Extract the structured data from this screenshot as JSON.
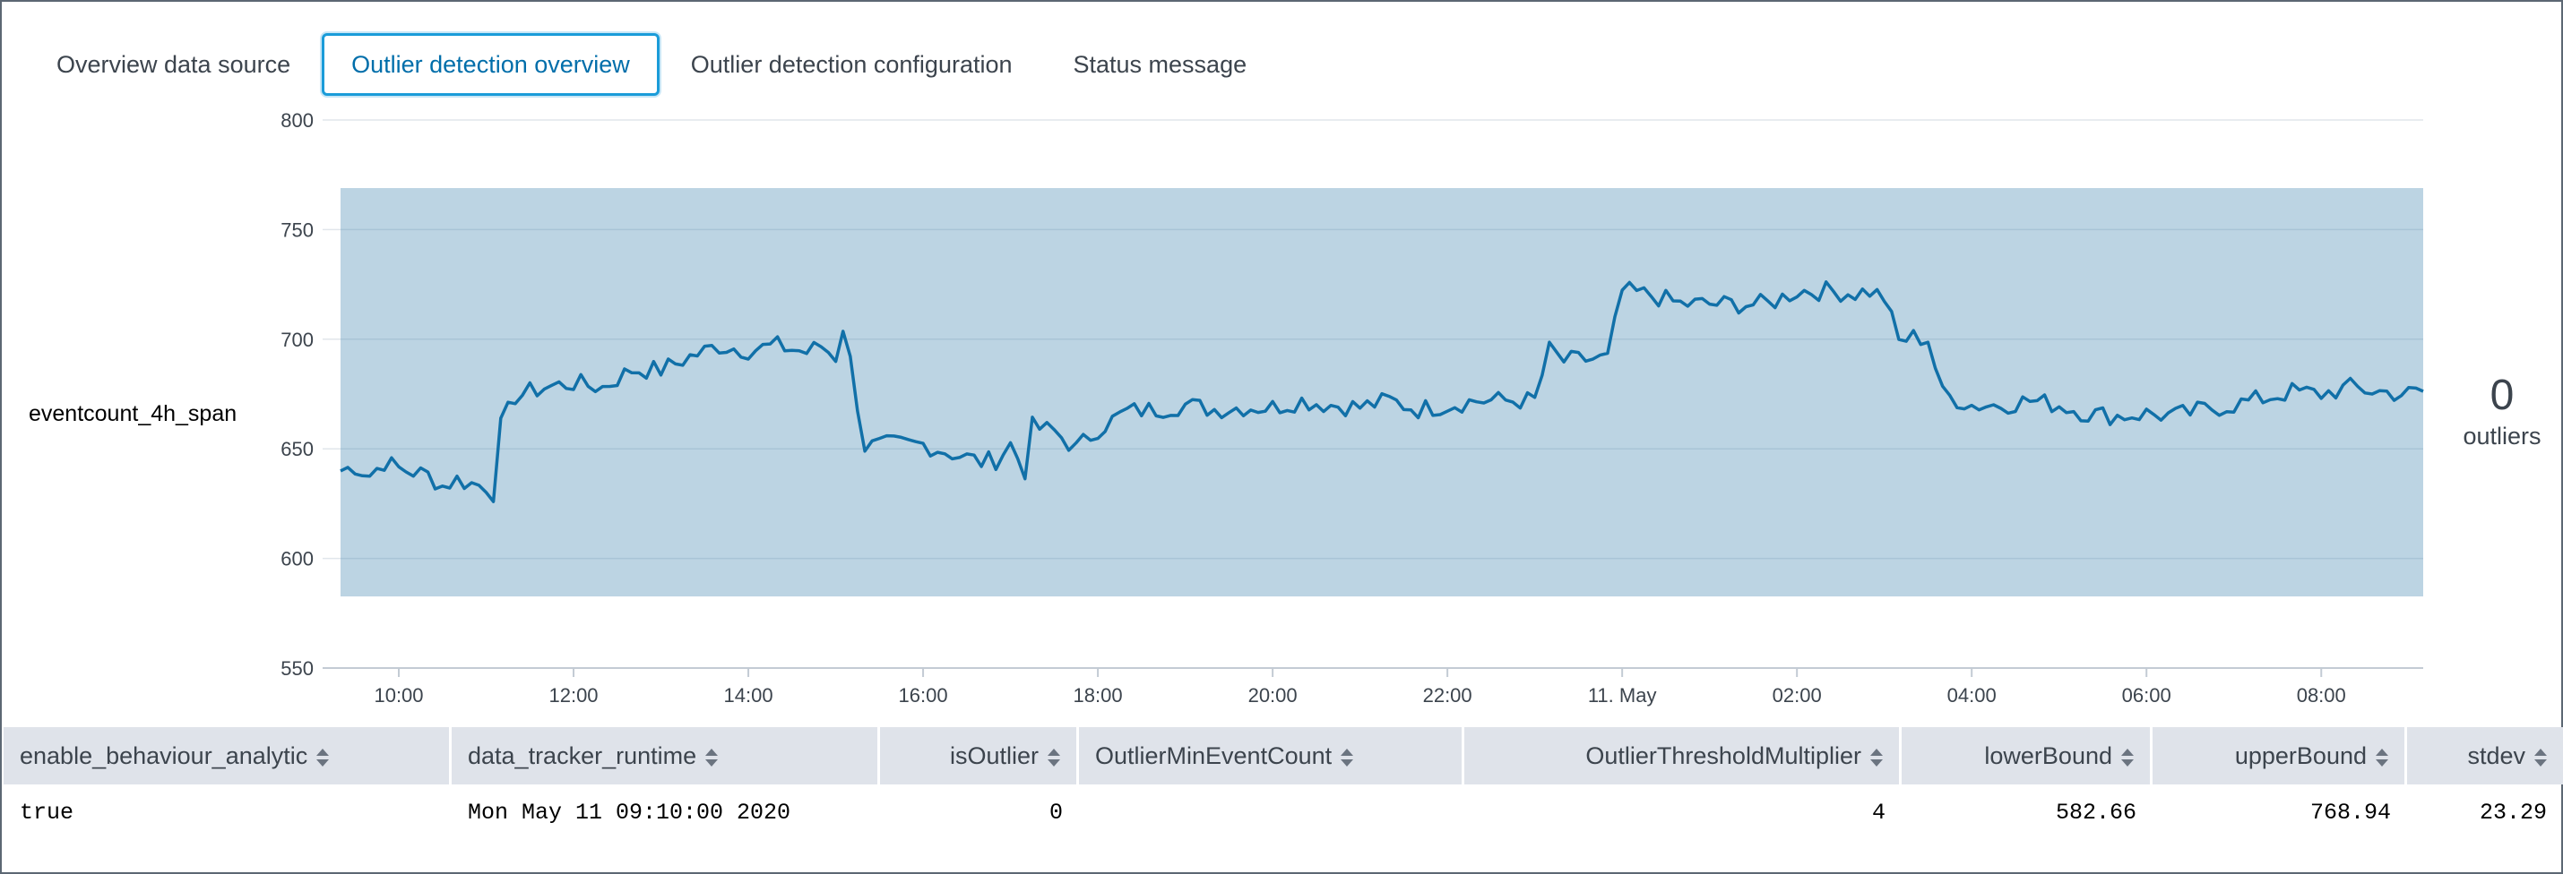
{
  "tabs": [
    {
      "label": "Overview data source",
      "active": false
    },
    {
      "label": "Outlier detection overview",
      "active": true
    },
    {
      "label": "Outlier detection configuration",
      "active": false
    },
    {
      "label": "Status message",
      "active": false
    }
  ],
  "chart": {
    "y_title": "eventcount_4h_span",
    "colors": {
      "line": "#1170a8",
      "band": "#bcd4e3",
      "grid": "#e1e6eb",
      "axis": "#c3cbd4"
    }
  },
  "summary": {
    "count": "0",
    "label": "outliers"
  },
  "chart_data": {
    "type": "line",
    "x_range": [
      "2020-05-10 09:20",
      "2020-05-11 09:10"
    ],
    "x_ticks": [
      "10:00",
      "12:00",
      "14:00",
      "16:00",
      "18:00",
      "20:00",
      "22:00",
      "11. May",
      "02:00",
      "04:00",
      "06:00",
      "08:00"
    ],
    "y_ticks": [
      "550",
      "600",
      "650",
      "700",
      "750",
      "800"
    ],
    "ylim": [
      550,
      800
    ],
    "ylabel": "eventcount_4h_span",
    "grid": true,
    "band": {
      "lower": 582.66,
      "upper": 768.94
    },
    "anchors": [
      [
        "09:20",
        640
      ],
      [
        "09:30",
        642
      ],
      [
        "09:40",
        638
      ],
      [
        "09:50",
        644
      ],
      [
        "10:00",
        641
      ],
      [
        "10:20",
        638
      ],
      [
        "10:30",
        633
      ],
      [
        "10:40",
        636
      ],
      [
        "10:50",
        634
      ],
      [
        "11:00",
        633
      ],
      [
        "11:05",
        630
      ],
      [
        "11:10",
        660
      ],
      [
        "11:20",
        674
      ],
      [
        "11:40",
        678
      ],
      [
        "12:00",
        680
      ],
      [
        "12:20",
        678
      ],
      [
        "12:40",
        686
      ],
      [
        "13:00",
        686
      ],
      [
        "13:20",
        692
      ],
      [
        "13:40",
        697
      ],
      [
        "14:00",
        695
      ],
      [
        "14:20",
        697
      ],
      [
        "14:40",
        694
      ],
      [
        "14:50",
        697
      ],
      [
        "15:00",
        692
      ],
      [
        "15:05",
        706
      ],
      [
        "15:10",
        690
      ],
      [
        "15:20",
        651
      ],
      [
        "15:40",
        652
      ],
      [
        "16:00",
        652
      ],
      [
        "16:20",
        648
      ],
      [
        "16:40",
        644
      ],
      [
        "16:50",
        645
      ],
      [
        "17:00",
        652
      ],
      [
        "17:10",
        640
      ],
      [
        "17:15",
        660
      ],
      [
        "17:30",
        658
      ],
      [
        "17:45",
        650
      ],
      [
        "18:00",
        659
      ],
      [
        "18:20",
        667
      ],
      [
        "18:40",
        668
      ],
      [
        "19:00",
        670
      ],
      [
        "19:20",
        668
      ],
      [
        "19:40",
        669
      ],
      [
        "20:00",
        669
      ],
      [
        "20:20",
        672
      ],
      [
        "20:40",
        670
      ],
      [
        "21:00",
        669
      ],
      [
        "21:20",
        672
      ],
      [
        "21:40",
        668
      ],
      [
        "22:00",
        670
      ],
      [
        "22:20",
        672
      ],
      [
        "22:40",
        672
      ],
      [
        "23:00",
        672
      ],
      [
        "23:10",
        695
      ],
      [
        "23:20",
        690
      ],
      [
        "23:40",
        691
      ],
      [
        "23:50",
        691
      ],
      [
        "00:00",
        722
      ],
      [
        "00:20",
        720
      ],
      [
        "00:40",
        716
      ],
      [
        "01:00",
        716
      ],
      [
        "01:20",
        716
      ],
      [
        "01:40",
        716
      ],
      [
        "02:00",
        722
      ],
      [
        "02:20",
        722
      ],
      [
        "02:40",
        721
      ],
      [
        "02:50",
        722
      ],
      [
        "03:00",
        719
      ],
      [
        "03:10",
        699
      ],
      [
        "03:20",
        701
      ],
      [
        "03:30",
        700
      ],
      [
        "03:40",
        675
      ],
      [
        "04:00",
        670
      ],
      [
        "04:20",
        670
      ],
      [
        "04:40",
        672
      ],
      [
        "05:00",
        670
      ],
      [
        "05:20",
        666
      ],
      [
        "05:40",
        665
      ],
      [
        "06:00",
        666
      ],
      [
        "06:20",
        665
      ],
      [
        "06:40",
        668
      ],
      [
        "07:00",
        670
      ],
      [
        "07:20",
        673
      ],
      [
        "07:40",
        676
      ],
      [
        "08:00",
        675
      ],
      [
        "08:20",
        678
      ],
      [
        "08:40",
        676
      ],
      [
        "09:00",
        675
      ],
      [
        "09:10",
        676
      ]
    ]
  },
  "table": {
    "columns": [
      {
        "label": "enable_behaviour_analytic",
        "align": "left"
      },
      {
        "label": "data_tracker_runtime",
        "align": "left"
      },
      {
        "label": "isOutlier",
        "align": "right"
      },
      {
        "label": "OutlierMinEventCount",
        "align": "left"
      },
      {
        "label": "OutlierThresholdMultiplier",
        "align": "right"
      },
      {
        "label": "lowerBound",
        "align": "right"
      },
      {
        "label": "upperBound",
        "align": "right"
      },
      {
        "label": "stdev",
        "align": "right"
      }
    ],
    "rows": [
      [
        "true",
        "Mon May 11 09:10:00 2020",
        "0",
        "",
        "4",
        "582.66",
        "768.94",
        "23.29"
      ]
    ]
  }
}
